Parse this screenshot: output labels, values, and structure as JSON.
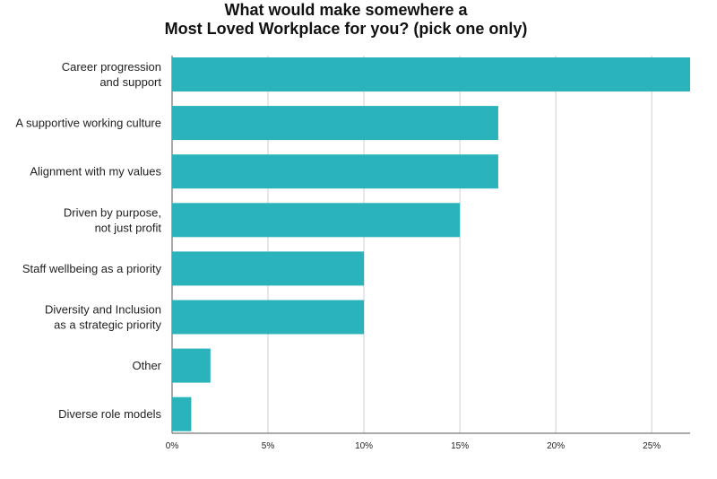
{
  "chart_data": {
    "type": "bar",
    "orientation": "horizontal",
    "title_lines": [
      "What would make somewhere a",
      "Most Loved Workplace for you? (pick one only)"
    ],
    "categories": [
      [
        "Career progression",
        "and support"
      ],
      [
        "A supportive working culture"
      ],
      [
        "Alignment with my values"
      ],
      [
        "Driven by purpose,",
        "not just profit"
      ],
      [
        "Staff wellbeing as a priority"
      ],
      [
        "Diversity and Inclusion",
        "as a strategic priority"
      ],
      [
        "Other"
      ],
      [
        "Diverse role models"
      ]
    ],
    "values": [
      27,
      17,
      17,
      15,
      10,
      10,
      2,
      1
    ],
    "x_ticks": [
      0,
      5,
      10,
      15,
      20,
      25
    ],
    "x_tick_labels": [
      "0%",
      "5%",
      "10%",
      "15%",
      "20%",
      "25%"
    ],
    "xlim": [
      0,
      27
    ],
    "grid": true,
    "bar_color": "#2bb3bb"
  }
}
